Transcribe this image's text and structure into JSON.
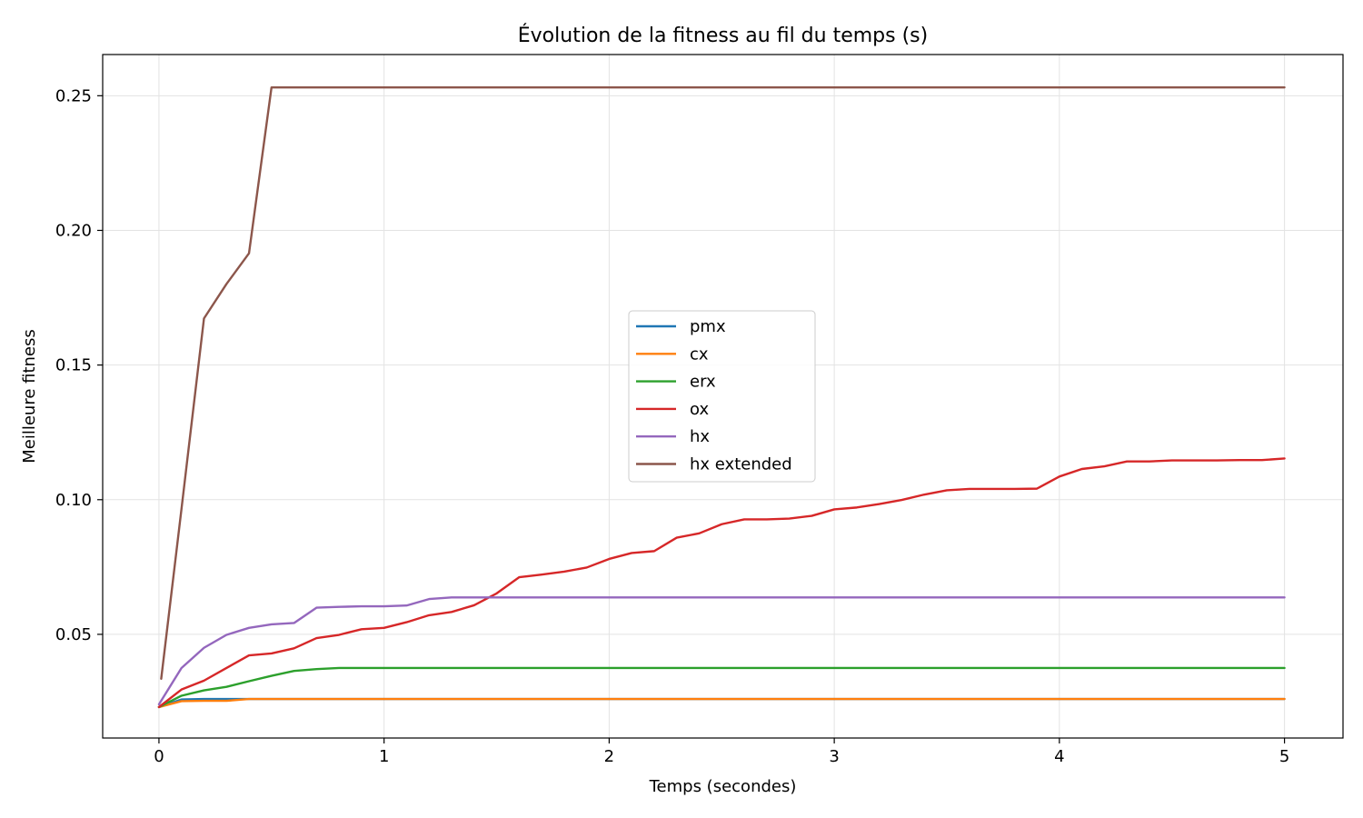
{
  "chart_data": {
    "type": "line",
    "title": "Évolution de la fitness au fil du temps (s)",
    "xlabel": "Temps (secondes)",
    "ylabel": "Meilleure fitness",
    "xlim": [
      -0.25,
      5.26
    ],
    "ylim": [
      0.0115,
      0.2653
    ],
    "xticks": [
      0,
      1,
      2,
      3,
      4,
      5
    ],
    "xtick_labels": [
      "0",
      "1",
      "2",
      "3",
      "4",
      "5"
    ],
    "yticks": [
      0.05,
      0.1,
      0.15,
      0.2,
      0.25
    ],
    "ytick_labels": [
      "0.05",
      "0.10",
      "0.15",
      "0.20",
      "0.25"
    ],
    "grid": true,
    "legend_position": "center",
    "series": [
      {
        "name": "pmx",
        "color": "#1f77b4",
        "x": [
          0,
          0.1,
          0.2,
          0.3,
          0.4,
          0.5,
          1,
          2,
          3,
          4,
          5
        ],
        "y": [
          0.023,
          0.0258,
          0.026,
          0.026,
          0.026,
          0.026,
          0.026,
          0.026,
          0.026,
          0.026,
          0.026
        ]
      },
      {
        "name": "cx",
        "color": "#ff7f0e",
        "x": [
          0,
          0.1,
          0.2,
          0.3,
          0.4,
          0.5,
          1,
          2,
          3,
          4,
          5
        ],
        "y": [
          0.023,
          0.0252,
          0.0253,
          0.0253,
          0.026,
          0.026,
          0.026,
          0.026,
          0.026,
          0.026,
          0.026
        ]
      },
      {
        "name": "erx",
        "color": "#2ca02c",
        "x": [
          0,
          0.1,
          0.2,
          0.3,
          0.4,
          0.5,
          0.6,
          0.7,
          0.8,
          0.9,
          1,
          2,
          3,
          4,
          5
        ],
        "y": [
          0.023,
          0.0272,
          0.0292,
          0.0305,
          0.0326,
          0.0346,
          0.0364,
          0.0371,
          0.0375,
          0.0375,
          0.0375,
          0.0375,
          0.0375,
          0.0375,
          0.0375
        ]
      },
      {
        "name": "ox",
        "color": "#d62728",
        "x": [
          0,
          0.1,
          0.2,
          0.3,
          0.4,
          0.5,
          0.6,
          0.7,
          0.8,
          0.9,
          1.0,
          1.1,
          1.2,
          1.3,
          1.4,
          1.5,
          1.6,
          1.7,
          1.8,
          1.9,
          2.0,
          2.1,
          2.2,
          2.3,
          2.4,
          2.5,
          2.6,
          2.7,
          2.8,
          2.9,
          3.0,
          3.1,
          3.2,
          3.3,
          3.4,
          3.5,
          3.6,
          3.7,
          3.8,
          3.9,
          4.0,
          4.1,
          4.2,
          4.3,
          4.4,
          4.5,
          4.6,
          4.7,
          4.8,
          4.9,
          5.0
        ],
        "y": [
          0.023,
          0.0295,
          0.0328,
          0.0375,
          0.0422,
          0.0429,
          0.0448,
          0.0486,
          0.0498,
          0.0519,
          0.0524,
          0.0545,
          0.0571,
          0.0583,
          0.0608,
          0.0652,
          0.0712,
          0.0722,
          0.0733,
          0.0748,
          0.078,
          0.0802,
          0.0809,
          0.0859,
          0.0875,
          0.0909,
          0.0927,
          0.0927,
          0.093,
          0.094,
          0.0964,
          0.0971,
          0.0984,
          0.0999,
          0.1019,
          0.1035,
          0.104,
          0.104,
          0.104,
          0.1041,
          0.1086,
          0.1114,
          0.1124,
          0.1142,
          0.1142,
          0.1146,
          0.1146,
          0.1146,
          0.1147,
          0.1147,
          0.1153
        ]
      },
      {
        "name": "hx",
        "color": "#9467bd",
        "x": [
          0,
          0.1,
          0.2,
          0.3,
          0.4,
          0.5,
          0.6,
          0.7,
          0.8,
          0.9,
          1.0,
          1.1,
          1.2,
          1.3,
          1.4,
          2,
          3,
          4,
          5
        ],
        "y": [
          0.024,
          0.0375,
          0.045,
          0.0498,
          0.0524,
          0.0537,
          0.0542,
          0.0599,
          0.0602,
          0.0604,
          0.0604,
          0.0607,
          0.0631,
          0.0637,
          0.0637,
          0.0637,
          0.0637,
          0.0637,
          0.0637
        ]
      },
      {
        "name": "hx extended",
        "color": "#8c564b",
        "x": [
          0.01,
          0.1,
          0.2,
          0.3,
          0.4,
          0.5,
          1,
          2,
          3,
          4,
          5
        ],
        "y": [
          0.0335,
          0.0965,
          0.1673,
          0.1801,
          0.1915,
          0.2531,
          0.2531,
          0.2531,
          0.2531,
          0.2531,
          0.2531
        ]
      }
    ]
  }
}
